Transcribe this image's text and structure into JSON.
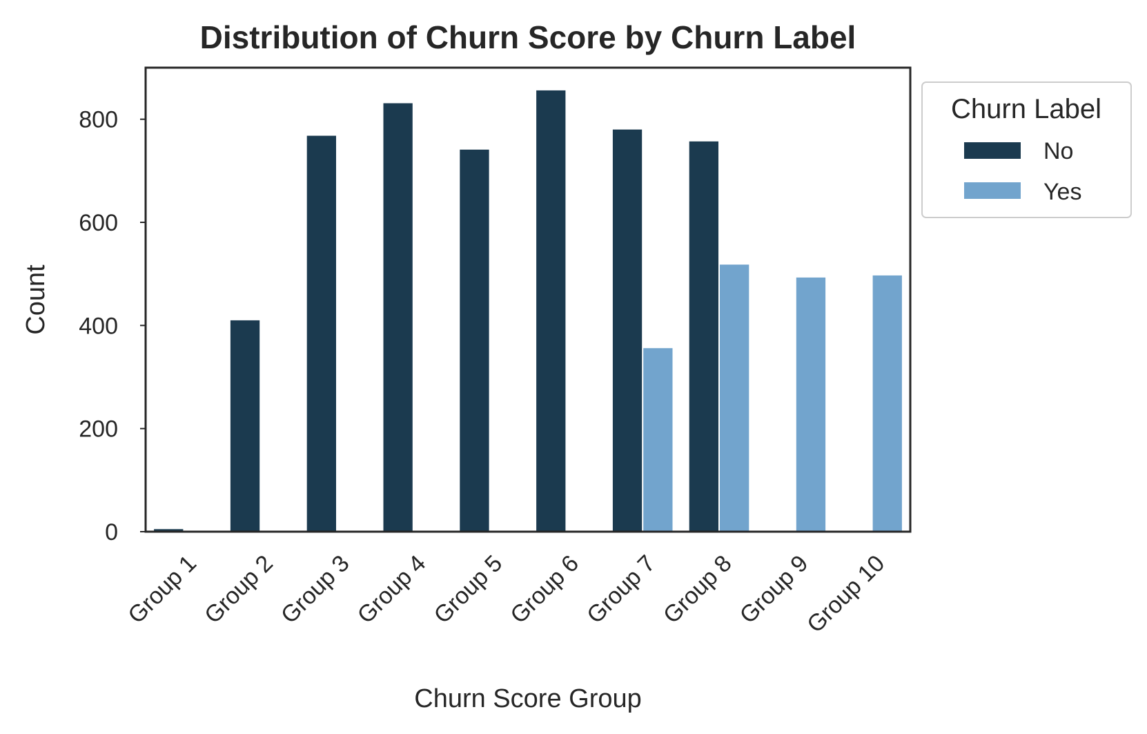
{
  "chart_data": {
    "type": "bar",
    "title": "Distribution of Churn Score by Churn Label",
    "xlabel": "Churn Score Group",
    "ylabel": "Count",
    "categories": [
      "Group 1",
      "Group 2",
      "Group 3",
      "Group 4",
      "Group 5",
      "Group 6",
      "Group 7",
      "Group 8",
      "Group 9",
      "Group 10"
    ],
    "series": [
      {
        "name": "No",
        "color": "#1b3a4f",
        "values": [
          5,
          410,
          768,
          831,
          741,
          856,
          780,
          757,
          0,
          0
        ]
      },
      {
        "name": "Yes",
        "color": "#72a4cd",
        "values": [
          0,
          0,
          0,
          0,
          0,
          0,
          356,
          518,
          493,
          497
        ]
      }
    ],
    "ylim": [
      0,
      900
    ],
    "yticks": [
      0,
      200,
      400,
      600,
      800
    ],
    "grid": false,
    "legend": {
      "title": "Churn Label",
      "placement": "outside top-right"
    }
  }
}
